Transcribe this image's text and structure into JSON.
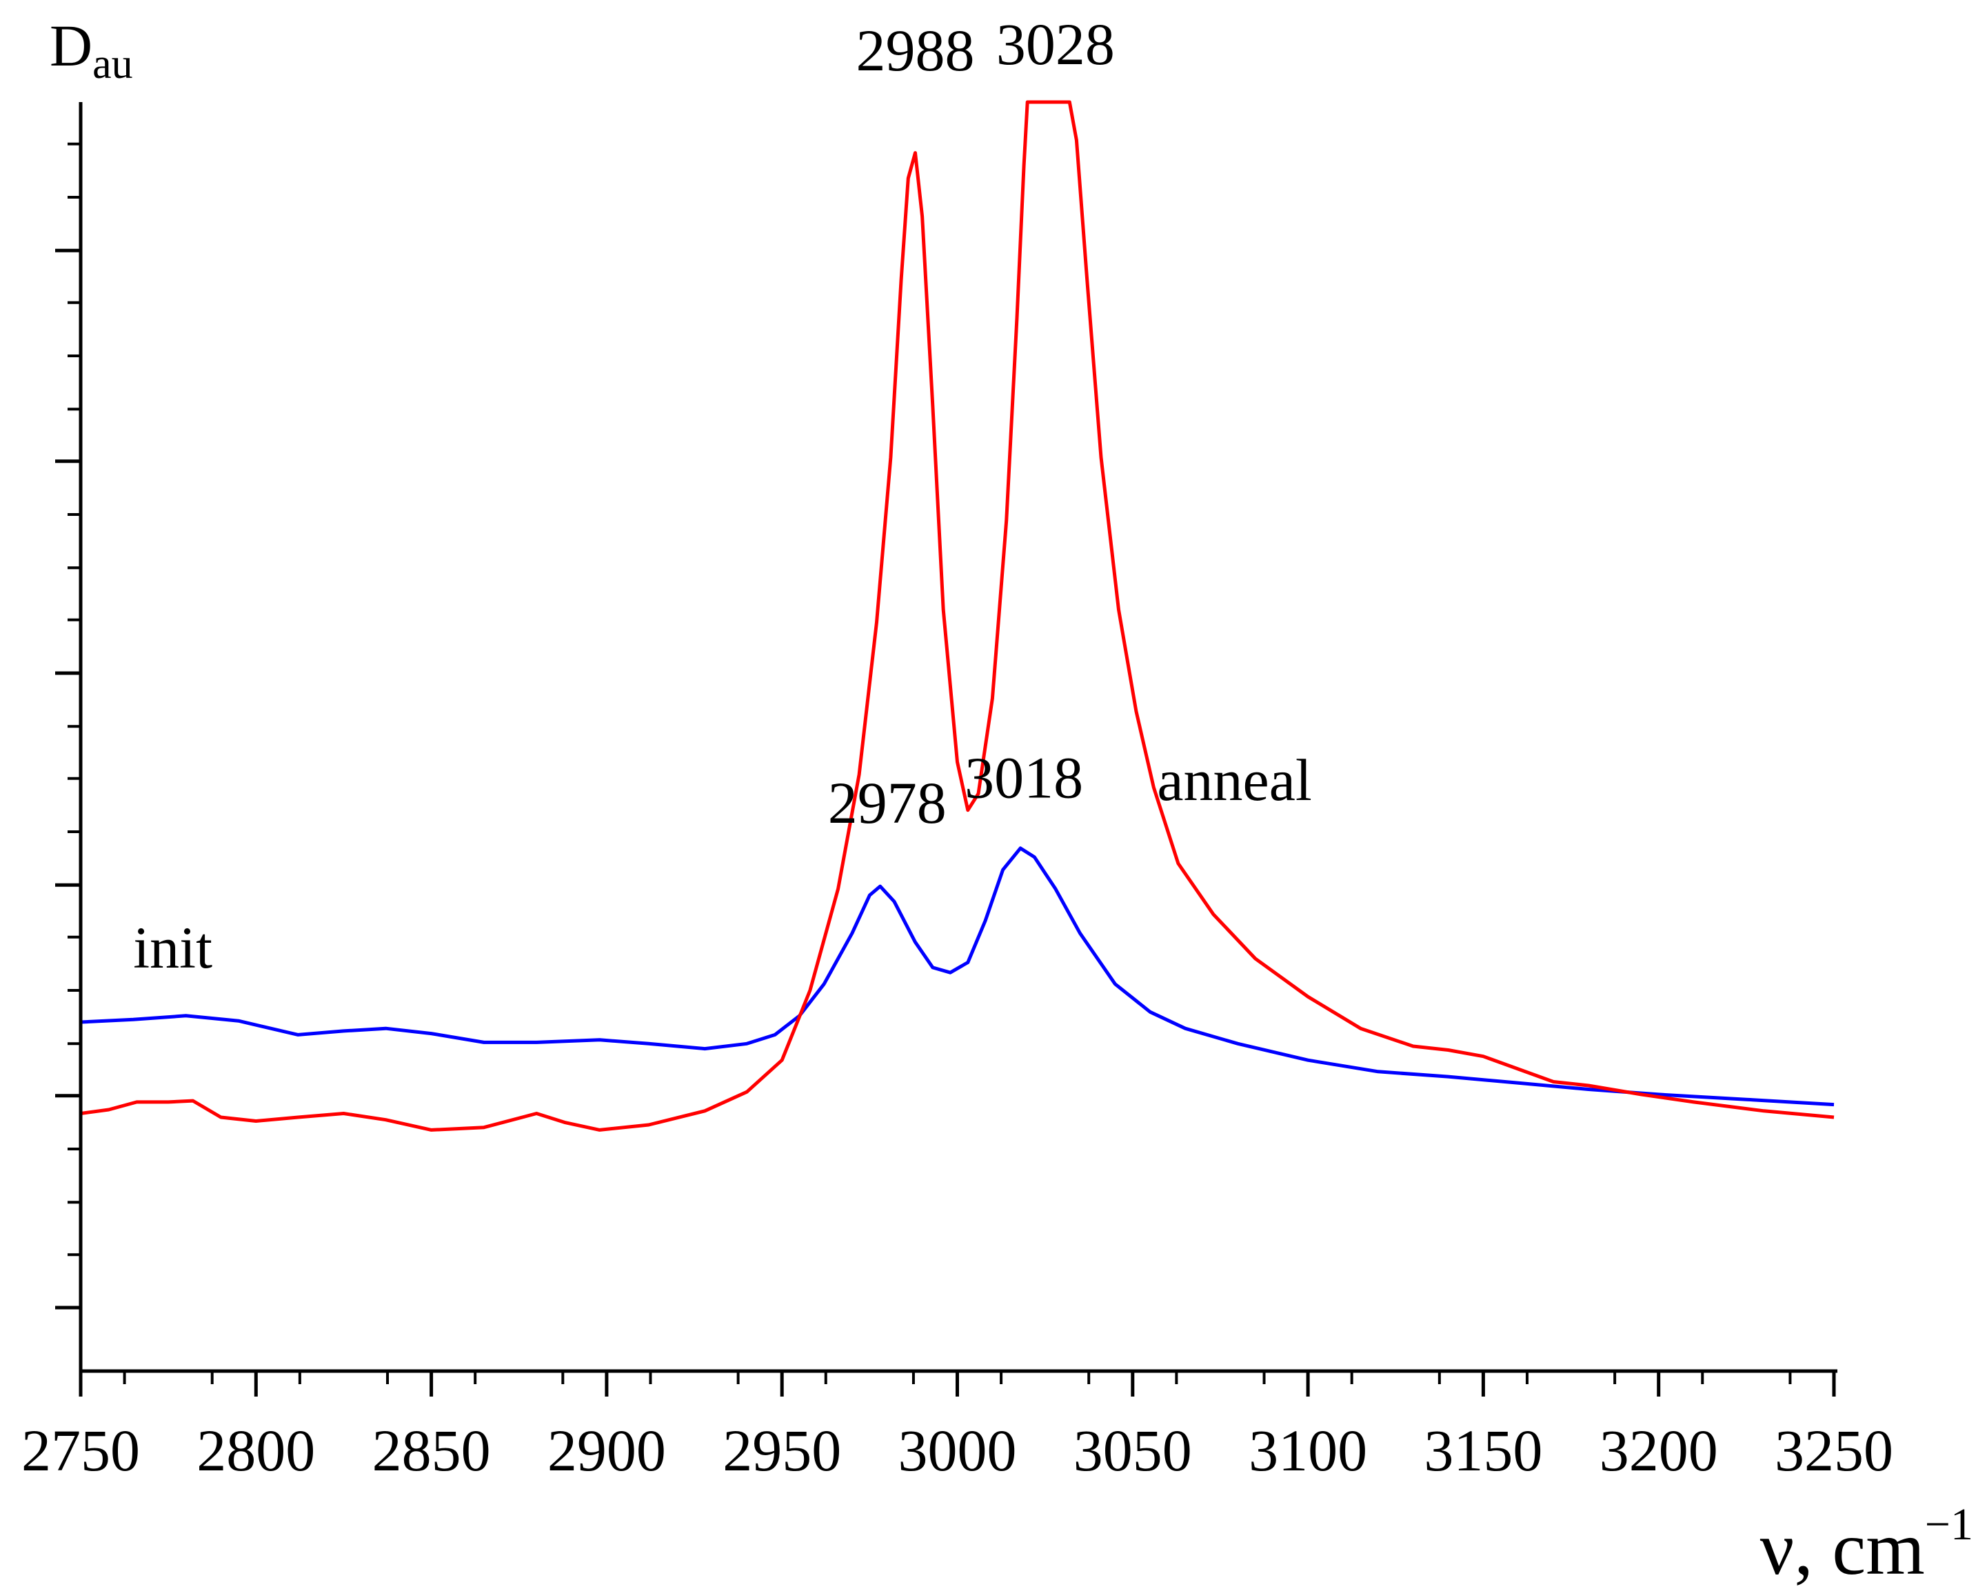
{
  "chart_data": {
    "type": "line",
    "title": "",
    "ylabel_main": "D",
    "ylabel_sub": "au",
    "xlabel_main": "ν, cm",
    "xlabel_sup": "−1",
    "xlim": [
      2750,
      3250
    ],
    "ylim": [
      0,
      1
    ],
    "x_ticks": [
      2750,
      2800,
      2850,
      2900,
      2950,
      3000,
      3050,
      3100,
      3150,
      3200,
      3250
    ],
    "x_tick_labels": [
      "2750",
      "2800",
      "2850",
      "2900",
      "2950",
      "3000",
      "3050",
      "3100",
      "3150",
      "3200",
      "3250"
    ],
    "y_major_ticks": [
      0.05,
      0.217,
      0.383,
      0.55,
      0.717,
      0.883
    ],
    "y_minor_ticks": [
      0.0917,
      0.133,
      0.175,
      0.258,
      0.3,
      0.342,
      0.425,
      0.467,
      0.508,
      0.592,
      0.633,
      0.675,
      0.758,
      0.8,
      0.842,
      0.925,
      0.967
    ],
    "x_minor_step": 12.5,
    "grid": false,
    "series": [
      {
        "name": "init",
        "color": "#0000ff",
        "x": [
          2750,
          2765,
          2780,
          2795,
          2812,
          2825,
          2837,
          2850,
          2865,
          2880,
          2898,
          2912,
          2928,
          2940,
          2948,
          2955,
          2962,
          2970,
          2975,
          2978,
          2982,
          2988,
          2993,
          2998,
          3003,
          3008,
          3013,
          3018,
          3022,
          3028,
          3035,
          3045,
          3055,
          3065,
          3080,
          3100,
          3120,
          3140,
          3160,
          3180,
          3200,
          3225,
          3250
        ],
        "y": [
          0.275,
          0.277,
          0.28,
          0.276,
          0.265,
          0.268,
          0.27,
          0.266,
          0.259,
          0.259,
          0.261,
          0.258,
          0.254,
          0.258,
          0.265,
          0.28,
          0.305,
          0.345,
          0.375,
          0.382,
          0.37,
          0.338,
          0.318,
          0.314,
          0.322,
          0.355,
          0.395,
          0.412,
          0.405,
          0.38,
          0.345,
          0.305,
          0.283,
          0.27,
          0.258,
          0.245,
          0.236,
          0.232,
          0.227,
          0.222,
          0.218,
          0.214,
          0.21
        ]
      },
      {
        "name": "anneal",
        "color": "#ff0000",
        "x": [
          2750,
          2758,
          2766,
          2775,
          2782,
          2790,
          2800,
          2812,
          2825,
          2837,
          2850,
          2865,
          2880,
          2888,
          2898,
          2912,
          2928,
          2940,
          2950,
          2958,
          2966,
          2972,
          2977,
          2981,
          2984,
          2986,
          2988,
          2990,
          2993,
          2996,
          3000,
          3003,
          3006,
          3010,
          3014,
          3017,
          3019,
          3020,
          3021,
          3022,
          3025,
          3029,
          3031,
          3032,
          3034,
          3037,
          3041,
          3046,
          3051,
          3056,
          3063,
          3073,
          3085,
          3100,
          3115,
          3130,
          3140,
          3150,
          3160,
          3170,
          3180,
          3195,
          3210,
          3230,
          3250
        ],
        "y": [
          0.203,
          0.206,
          0.212,
          0.212,
          0.213,
          0.2,
          0.197,
          0.2,
          0.203,
          0.198,
          0.19,
          0.192,
          0.203,
          0.196,
          0.19,
          0.194,
          0.205,
          0.22,
          0.245,
          0.3,
          0.38,
          0.47,
          0.59,
          0.72,
          0.86,
          0.94,
          0.96,
          0.91,
          0.76,
          0.6,
          0.48,
          0.442,
          0.455,
          0.53,
          0.67,
          0.83,
          0.95,
          1.0,
          1.0,
          1.0,
          1.0,
          1.0,
          1.0,
          1.0,
          0.97,
          0.86,
          0.72,
          0.6,
          0.52,
          0.46,
          0.4,
          0.36,
          0.325,
          0.295,
          0.27,
          0.256,
          0.253,
          0.248,
          0.238,
          0.228,
          0.225,
          0.218,
          0.212,
          0.205,
          0.2
        ]
      }
    ],
    "annotations": [
      {
        "text": "2988",
        "x": 2988,
        "y": 1.025
      },
      {
        "text": "3028",
        "x": 3028,
        "y": 1.03
      },
      {
        "text": "2978",
        "x": 2980,
        "y": 0.432
      },
      {
        "text": "3018",
        "x": 3019,
        "y": 0.452
      },
      {
        "text": "anneal",
        "x": 3057,
        "y": 0.45
      },
      {
        "text": "init",
        "x": 2765,
        "y": 0.318
      }
    ]
  }
}
